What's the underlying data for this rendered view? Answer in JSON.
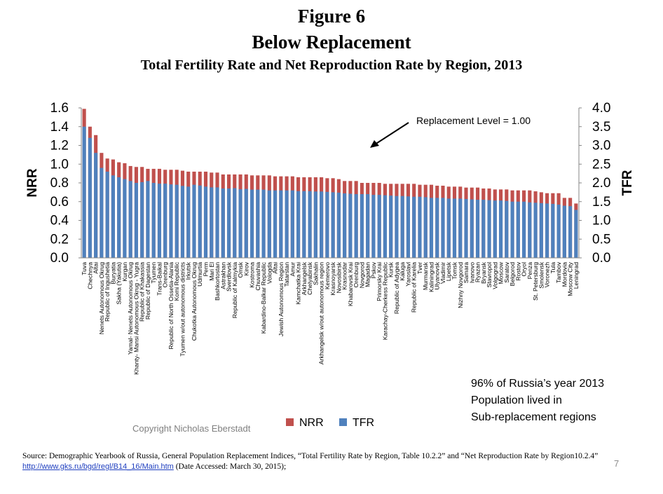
{
  "slide": {
    "figure_label": "Figure 6",
    "title": "Below Replacement",
    "subtitle": "Total Fertility Rate and Net Reproduction Rate by Region, 2013",
    "note_lines": [
      "96% of Russia’s  year 2013",
      "Population lived in",
      "Sub-replacement regions"
    ],
    "copyright": "Copyright Nicholas Eberstadt",
    "source_text": "Source: Demographic Yearbook of Russia, General Population Replacement Indices, “Total Fertility Rate by Region, Table 10.2.2” and “Net Reproduction Rate by Region10.2.4” ",
    "source_link": "http://www.gks.ru/bgd/regl/B14_16/Main.htm",
    "source_tail": " (Date Accessed: March 30, 2015);",
    "page_number": "7"
  },
  "chart_data": {
    "type": "bar",
    "ylabel": "NRR",
    "y2label": "TFR",
    "ylim": [
      0,
      1.6
    ],
    "y2lim": [
      0,
      4.0
    ],
    "yticks": [
      "0.0",
      "0.2",
      "0.4",
      "0.6",
      "0.8",
      "1.0",
      "1.2",
      "1.4",
      "1.6"
    ],
    "y2ticks": [
      "0.0",
      "0.5",
      "1.0",
      "1.5",
      "2.0",
      "2.5",
      "3.0",
      "3.5",
      "4.0"
    ],
    "annotation": "Replacement Level  =  1.00",
    "legend": [
      {
        "name": "NRR",
        "color": "#c0504d"
      },
      {
        "name": "TFR",
        "color": "#4f81bd"
      }
    ],
    "legend_position": "bottom",
    "categories": [
      "Tuva",
      "Chechnya",
      "Altai",
      "Nenets Autonomous Okrug",
      "Republic of Ingushetia",
      "Buryatia",
      "Sakha (Yakutia)",
      "Kurgan",
      "Yamal- Nenets Autonomous Okrug",
      "Khanty- Mansi Autonomous Okrug - Yugra",
      "Republic of Khakassia",
      "Republic of Dagestan",
      "Tyumen",
      "Trans-Baikal",
      "Orenburg",
      "Republic of North Ossetia-Alania",
      "Komi Republic",
      "Tyumen  w/out autonomous districts",
      "Irkutsk",
      "Chukotka Autonomous Okrug",
      "Udmurtia",
      "Perm",
      "Mari El",
      "Bashkortostan",
      "Astrakhan",
      "Sverdlovsk",
      "Republic of Kalmykia",
      "Omsk",
      "Kirov",
      "Kostroma",
      "Chuvashia",
      "Kabardino-Balkar Republic",
      "Vologda",
      "Altai",
      "Jewish Autonomous Region",
      "Tatarstan",
      "Amur",
      "Kamchatka Krai",
      "Arkhangelsk",
      "Chelyabinsk",
      "Sakhalin",
      "Arkhangelsk w/out autonomous region",
      "Kemerovo",
      "Krasnoyarsk",
      "Novosibirsk",
      "Krasnodar",
      "Khabarovsk Krai",
      "Orenburg",
      "Novgorod",
      "Magadan",
      "Pskov",
      "Primorsky Krai",
      "Karachay-Cherkess Republic",
      "Kursk",
      "Republic of Adygea",
      "Kaluga",
      "Yaroslavl",
      "Republic of Karelia",
      "Tver",
      "Murmansk",
      "Kaliningrad",
      "Ulyanovsk",
      "Vladimir",
      "Lipetsk",
      "Tomsk",
      "Nizhny Novgorod",
      "Samara",
      "Ivanovo",
      "Ryazan",
      "Bryansk",
      "Stavropol",
      "Volgograd",
      "Moscow",
      "Saratov",
      "Belgorod",
      "Rostov",
      "Oryol",
      "Penza",
      "St. Petersburg",
      "Smolensk",
      "Voronezh",
      "Tula",
      "Tambov",
      "Mordovia",
      "Moscow City",
      "Leningrad"
    ],
    "series": [
      {
        "name": "NRR",
        "values": [
          1.59,
          1.4,
          1.31,
          1.12,
          1.06,
          1.05,
          1.02,
          1.01,
          0.98,
          0.97,
          0.97,
          0.95,
          0.95,
          0.95,
          0.94,
          0.94,
          0.94,
          0.93,
          0.92,
          0.92,
          0.92,
          0.92,
          0.91,
          0.91,
          0.89,
          0.89,
          0.89,
          0.89,
          0.89,
          0.88,
          0.88,
          0.88,
          0.88,
          0.87,
          0.87,
          0.87,
          0.87,
          0.86,
          0.86,
          0.86,
          0.86,
          0.86,
          0.85,
          0.85,
          0.84,
          0.82,
          0.82,
          0.82,
          0.8,
          0.8,
          0.8,
          0.8,
          0.79,
          0.79,
          0.79,
          0.79,
          0.79,
          0.79,
          0.78,
          0.78,
          0.78,
          0.77,
          0.77,
          0.76,
          0.76,
          0.76,
          0.75,
          0.75,
          0.75,
          0.74,
          0.74,
          0.73,
          0.73,
          0.73,
          0.72,
          0.72,
          0.72,
          0.72,
          0.71,
          0.7,
          0.69,
          0.69,
          0.69,
          0.64,
          0.64,
          0.58
        ]
      },
      {
        "name": "TFR",
        "values": [
          3.5,
          3.2,
          2.8,
          2.4,
          2.3,
          2.2,
          2.15,
          2.1,
          2.05,
          2.0,
          2.02,
          2.05,
          2.0,
          1.98,
          1.98,
          1.96,
          1.95,
          1.92,
          1.9,
          1.95,
          1.93,
          1.9,
          1.88,
          1.88,
          1.85,
          1.85,
          1.86,
          1.83,
          1.84,
          1.82,
          1.82,
          1.82,
          1.8,
          1.8,
          1.8,
          1.8,
          1.8,
          1.78,
          1.78,
          1.78,
          1.77,
          1.77,
          1.76,
          1.75,
          1.74,
          1.72,
          1.71,
          1.7,
          1.7,
          1.7,
          1.68,
          1.68,
          1.67,
          1.66,
          1.65,
          1.65,
          1.64,
          1.63,
          1.63,
          1.62,
          1.6,
          1.6,
          1.6,
          1.58,
          1.58,
          1.58,
          1.57,
          1.56,
          1.55,
          1.55,
          1.54,
          1.53,
          1.53,
          1.52,
          1.5,
          1.5,
          1.5,
          1.48,
          1.47,
          1.46,
          1.45,
          1.44,
          1.42,
          1.39,
          1.38,
          1.28
        ]
      }
    ]
  }
}
